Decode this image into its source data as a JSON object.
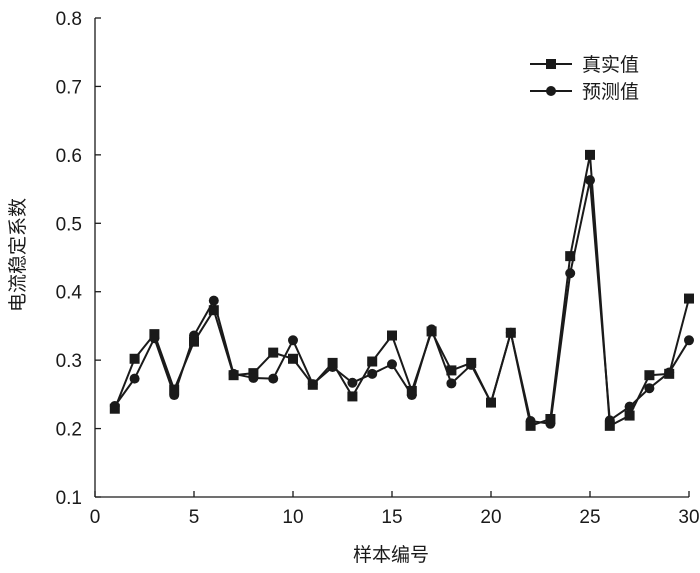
{
  "chart_data": {
    "type": "line",
    "title": "",
    "xlabel": "样本编号",
    "ylabel": "电流稳定系数",
    "xlim": [
      0,
      30
    ],
    "ylim": [
      0.1,
      0.8
    ],
    "xticks": [
      0,
      5,
      10,
      15,
      20,
      25,
      30
    ],
    "yticks": [
      0.1,
      0.2,
      0.3,
      0.4,
      0.5,
      0.6,
      0.7,
      0.8
    ],
    "xtick_labels": [
      "0",
      "5",
      "10",
      "15",
      "20",
      "25",
      "30"
    ],
    "ytick_labels": [
      "0.1",
      "0.2",
      "0.3",
      "0.4",
      "0.5",
      "0.6",
      "0.7",
      "0.8"
    ],
    "grid": false,
    "legend_position": "top-right",
    "x": [
      1,
      2,
      3,
      4,
      5,
      6,
      7,
      8,
      9,
      10,
      11,
      12,
      13,
      14,
      15,
      16,
      17,
      18,
      19,
      20,
      21,
      22,
      23,
      24,
      25,
      26,
      27,
      28,
      29,
      30
    ],
    "series": [
      {
        "name": "真实值",
        "marker": "square",
        "values": [
          0.229,
          0.302,
          0.338,
          0.257,
          0.327,
          0.373,
          0.278,
          0.281,
          0.311,
          0.302,
          0.264,
          0.296,
          0.247,
          0.298,
          0.336,
          0.255,
          0.342,
          0.285,
          0.296,
          0.238,
          0.34,
          0.204,
          0.214,
          0.452,
          0.6,
          0.204,
          0.219,
          0.278,
          0.28,
          0.39
        ]
      },
      {
        "name": "预测值",
        "marker": "circle",
        "values": [
          0.233,
          0.273,
          0.332,
          0.249,
          0.336,
          0.387,
          0.28,
          0.274,
          0.273,
          0.329,
          0.265,
          0.29,
          0.267,
          0.28,
          0.294,
          0.249,
          0.345,
          0.266,
          0.293,
          0.238,
          0.34,
          0.211,
          0.207,
          0.427,
          0.563,
          0.212,
          0.232,
          0.259,
          0.282,
          0.329
        ]
      }
    ]
  }
}
